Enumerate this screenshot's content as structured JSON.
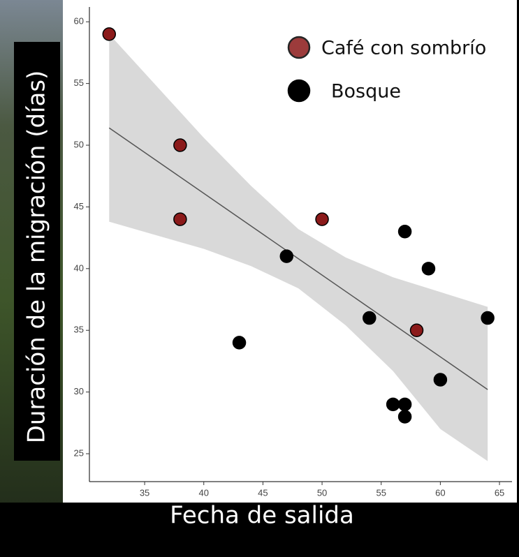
{
  "chart_data": {
    "type": "scatter",
    "xlabel": "Fecha de salida",
    "ylabel": "Duración de la migración (días)",
    "xlim": [
      30.33,
      66.06
    ],
    "ylim": [
      22.74,
      61.2
    ],
    "xticks": [
      35,
      40,
      45,
      50,
      55,
      60,
      65
    ],
    "yticks": [
      25,
      30,
      35,
      40,
      45,
      50,
      55,
      60
    ],
    "series": [
      {
        "name": "Café con sombrío",
        "color": "#8b1a1a",
        "x": [
          32,
          38,
          38,
          50,
          58
        ],
        "values": [
          59,
          50,
          44,
          44,
          35
        ]
      },
      {
        "name": "Bosque",
        "color": "#000000",
        "x": [
          43,
          47,
          54,
          56,
          57,
          57,
          57,
          59,
          60,
          64
        ],
        "values": [
          34,
          41,
          36,
          29,
          29,
          28,
          43,
          40,
          31,
          36
        ]
      }
    ],
    "fit": {
      "x": [
        32,
        64
      ],
      "values": [
        51.4,
        30.2
      ],
      "color": "#555555"
    },
    "band": {
      "x": [
        32,
        36,
        40,
        44,
        48,
        52,
        56,
        60,
        64
      ],
      "upper": [
        59.0,
        54.8,
        50.6,
        46.7,
        43.2,
        40.9,
        39.3,
        38.1,
        36.9
      ],
      "lower": [
        43.8,
        42.7,
        41.6,
        40.2,
        38.4,
        35.4,
        31.7,
        27.0,
        24.4
      ],
      "color": "#d9d9d9"
    },
    "legend": "top-right"
  }
}
